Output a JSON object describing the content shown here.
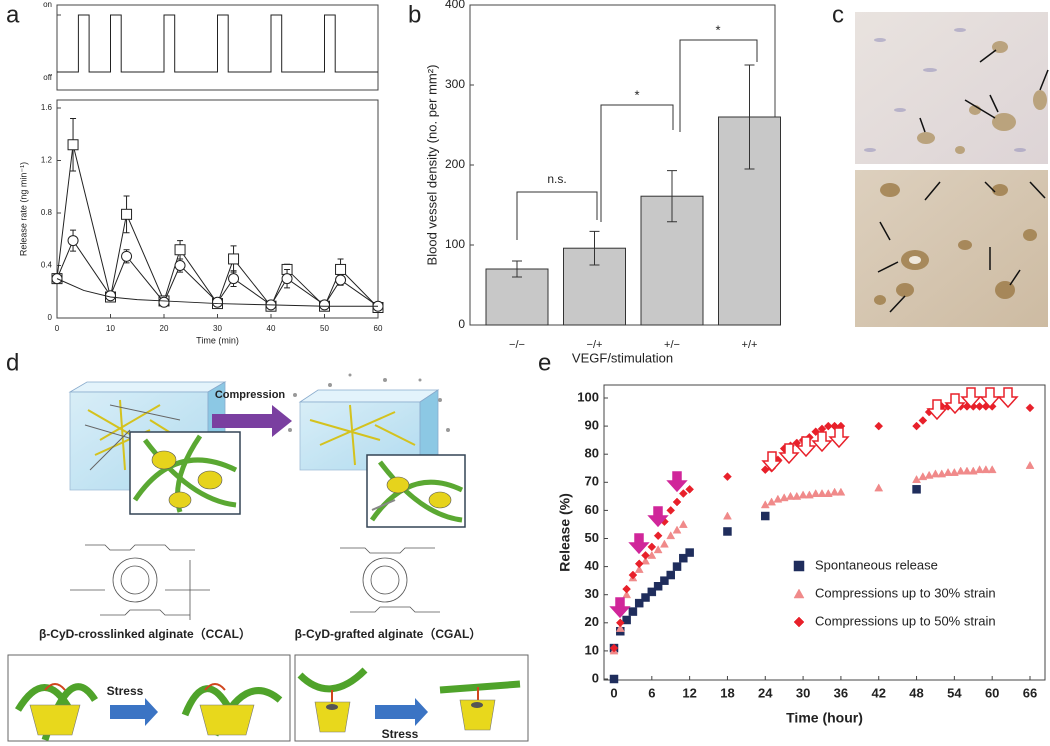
{
  "panel_labels": [
    "a",
    "b",
    "c",
    "d",
    "e"
  ],
  "chart_data": [
    {
      "type": "line",
      "color": "#222",
      "x": [
        0,
        4,
        4,
        6,
        6,
        10,
        10,
        12,
        12,
        20,
        20,
        22,
        22,
        30,
        30,
        32,
        32,
        40,
        40,
        42,
        42,
        50,
        50,
        52,
        52,
        60
      ],
      "values": [
        0,
        0,
        1,
        1,
        0,
        0,
        1,
        1,
        0,
        0,
        1,
        1,
        0,
        0,
        1,
        1,
        0,
        0,
        1,
        1,
        0,
        0,
        1,
        1,
        0,
        0
      ],
      "xlim": [
        0,
        60
      ],
      "ylim": [
        0,
        1
      ],
      "yticks": [
        {
          "value": 1,
          "label": "on"
        },
        {
          "value": 0,
          "label": "off"
        }
      ]
    },
    {
      "type": "line",
      "x_label": "Time (min)",
      "y_label": "Release rate (ng min⁻¹)",
      "xlim": [
        0,
        60
      ],
      "ylim": [
        0,
        1.6
      ],
      "xticks": [
        0,
        10,
        20,
        30,
        40,
        50,
        60
      ],
      "yticks": [
        0,
        0.4,
        0.8,
        1.2,
        1.6
      ],
      "series": [
        {
          "color": "#222",
          "marker": "square",
          "x": [
            0,
            3,
            10,
            13,
            20,
            23,
            30,
            33,
            40,
            43,
            50,
            53,
            60
          ],
          "values": [
            0.3,
            1.32,
            0.16,
            0.79,
            0.13,
            0.52,
            0.11,
            0.45,
            0.09,
            0.37,
            0.09,
            0.37,
            0.08
          ],
          "errors": [
            0.03,
            0.2,
            0.02,
            0.14,
            0.02,
            0.07,
            0.02,
            0.1,
            0.02,
            0.04,
            0.02,
            0.08,
            0.02
          ]
        },
        {
          "color": "#222",
          "marker": "circle",
          "x": [
            0,
            3,
            10,
            13,
            20,
            23,
            30,
            33,
            40,
            43,
            50,
            53,
            60
          ],
          "values": [
            0.3,
            0.59,
            0.17,
            0.47,
            0.12,
            0.4,
            0.12,
            0.3,
            0.1,
            0.3,
            0.1,
            0.29,
            0.09
          ],
          "errors": [
            0.03,
            0.08,
            0.02,
            0.05,
            0.02,
            0.05,
            0.02,
            0.06,
            0.02,
            0.07,
            0.02,
            0.04,
            0.02
          ]
        },
        {
          "color": "#222",
          "marker": "none",
          "x": [
            0,
            5,
            10,
            15,
            20,
            30,
            40,
            50,
            60
          ],
          "values": [
            0.3,
            0.21,
            0.16,
            0.14,
            0.13,
            0.11,
            0.1,
            0.09,
            0.09
          ]
        }
      ]
    },
    {
      "type": "bar",
      "x_label": "VEGF/stimulation",
      "y_label": "Blood vessel density (no. per mm²)",
      "categories": [
        "−/−",
        "−/+",
        "+/−",
        "+/+"
      ],
      "values": [
        70,
        96,
        161,
        260
      ],
      "errors": [
        10,
        21,
        32,
        65
      ],
      "color": "#c8c8c8",
      "ylim": [
        0,
        400
      ],
      "yticks": [
        0,
        100,
        200,
        300,
        400
      ],
      "annotations": [
        "n.s.",
        "*",
        "*"
      ]
    },
    {
      "type": "scatter",
      "x_label": "Time (hour)",
      "y_label": "Release (%)",
      "xlim": [
        0,
        66
      ],
      "ylim": [
        0,
        100
      ],
      "xticks": [
        0,
        6,
        12,
        18,
        24,
        30,
        36,
        42,
        48,
        54,
        60,
        66
      ],
      "yticks": [
        0,
        10,
        20,
        30,
        40,
        50,
        60,
        70,
        80,
        90,
        100
      ],
      "series": [
        {
          "name": "Spontaneous release",
          "color": "#1f2d5c",
          "marker": "square",
          "x": [
            0,
            0,
            1,
            2,
            3,
            4,
            5,
            6,
            7,
            8,
            9,
            10,
            11,
            12,
            18,
            24,
            48
          ],
          "values": [
            0,
            11,
            17,
            21,
            24,
            27,
            29,
            31,
            33,
            35,
            37,
            40,
            43,
            45,
            52.5,
            58,
            67.5
          ]
        },
        {
          "name": "Compressions up to 30% strain",
          "color": "#f08a8a",
          "marker": "triangle",
          "x": [
            0,
            1,
            2,
            3,
            4,
            5,
            6,
            7,
            8,
            9,
            10,
            11,
            18,
            24,
            25,
            26,
            27,
            28,
            29,
            30,
            31,
            32,
            33,
            34,
            35,
            36,
            42,
            48,
            49,
            50,
            51,
            52,
            53,
            54,
            55,
            56,
            57,
            58,
            59,
            60,
            66
          ],
          "values": [
            10,
            18,
            30,
            36,
            39,
            42,
            44,
            46,
            48,
            51,
            53,
            55,
            58,
            62,
            63,
            64,
            64.5,
            65,
            65,
            65.5,
            65.5,
            66,
            66,
            66,
            66.5,
            66.5,
            68,
            71,
            72,
            72.5,
            73,
            73,
            73.5,
            73.5,
            74,
            74,
            74,
            74.5,
            74.5,
            74.5,
            76
          ]
        },
        {
          "name": "Compressions up to 50% strain",
          "color": "#e8202a",
          "marker": "diamond",
          "x": [
            0,
            1,
            2,
            3,
            4,
            5,
            6,
            7,
            8,
            9,
            10,
            11,
            12,
            18,
            24,
            25,
            26,
            27,
            28,
            29,
            30,
            31,
            32,
            33,
            34,
            35,
            36,
            42,
            48,
            49,
            50,
            51,
            52,
            53,
            54,
            55,
            56,
            57,
            58,
            59,
            60,
            66
          ],
          "values": [
            11,
            20,
            32,
            37,
            41,
            44,
            47,
            51,
            56,
            60,
            63,
            66,
            67.5,
            72,
            74.5,
            75,
            78,
            82,
            83,
            84,
            85,
            86,
            88,
            89,
            90,
            90,
            90,
            90,
            90,
            92,
            95,
            96,
            97,
            97,
            97,
            97,
            97,
            97,
            97,
            97,
            97,
            96.5
          ]
        }
      ]
    }
  ],
  "diagram": {
    "compression_label": "Compression",
    "left_caption": "β-CyD-crosslinked alginate（CCAL）",
    "right_caption": "β-CyD-grafted alginate（CGAL）",
    "stress_labels": [
      "Stress",
      "Stress"
    ]
  }
}
